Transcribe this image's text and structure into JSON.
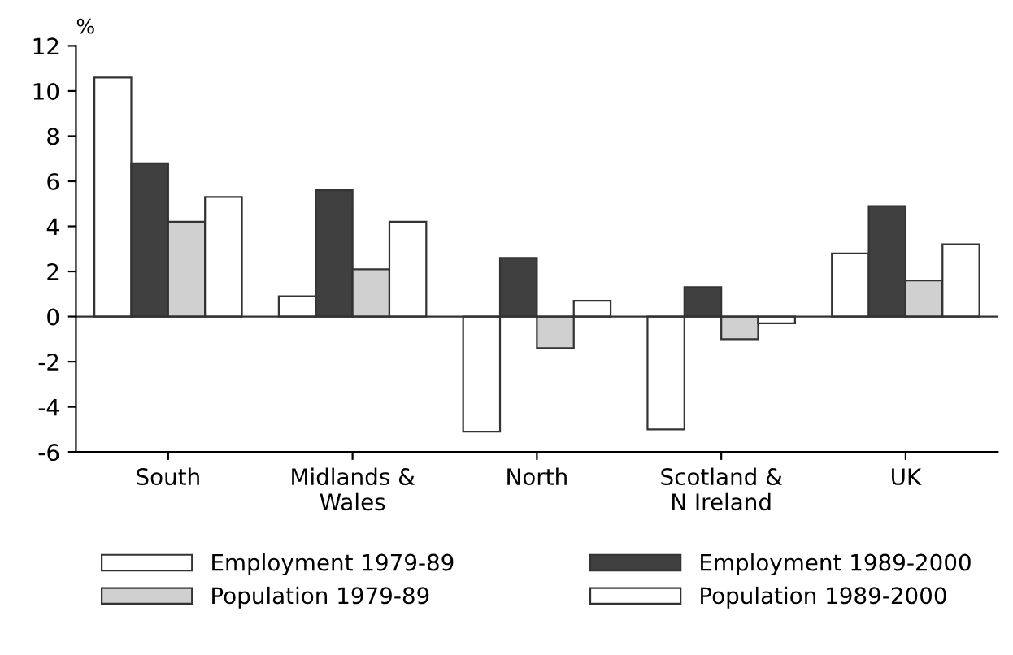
{
  "chart_data": {
    "type": "bar",
    "ylabel": "%",
    "categories": [
      "South",
      "Midlands &\nWales",
      "North",
      "Scotland &\nN Ireland",
      "UK"
    ],
    "series": [
      {
        "name": "Employment 1979-89",
        "color": "#ffffff",
        "values": [
          10.6,
          0.9,
          -5.1,
          -5.0,
          2.8
        ]
      },
      {
        "name": "Employment 1989-2000",
        "color": "#404040",
        "values": [
          6.8,
          5.6,
          2.6,
          1.3,
          4.9
        ]
      },
      {
        "name": "Population 1979-89",
        "color": "#d0d0d0",
        "values": [
          4.2,
          2.1,
          -1.4,
          -1.0,
          1.6
        ]
      },
      {
        "name": "Population 1989-2000",
        "color": "#ffffff",
        "values": [
          5.3,
          4.2,
          0.7,
          -0.3,
          3.2
        ]
      }
    ],
    "ylim": [
      -6,
      12
    ],
    "yticks": [
      -6,
      -4,
      -2,
      0,
      2,
      4,
      6,
      8,
      10,
      12
    ],
    "ref_lines": [
      {
        "axis": "y",
        "value": 0
      }
    ],
    "legend": "bottom"
  }
}
